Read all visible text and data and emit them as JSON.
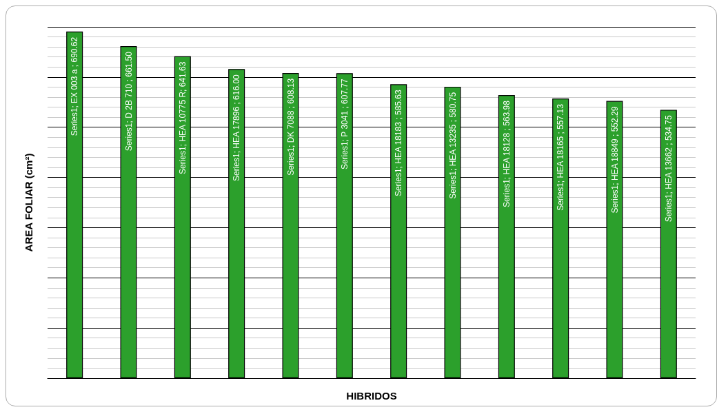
{
  "chart_data": {
    "type": "bar",
    "xlabel": "HIBRIDOS",
    "ylabel": "AREA FOLIAR (cm²)",
    "categories": [
      null,
      null,
      null,
      null,
      null,
      null,
      null,
      null,
      null,
      null,
      null,
      null
    ],
    "series": [
      {
        "color": "#2ca02c",
        "values": [
          690.62,
          661.5,
          641.63,
          616.0,
          608.13,
          607.77,
          585.63,
          580.75,
          563.98,
          557.13,
          552.29,
          534.75
        ],
        "value_labels": [
          "Series1; EX 003 a ; 690.62",
          "Series1; D 2B 710 ; 661.50",
          "Series1; HEA 10775 R; 641.63",
          "Series1; HEA 17896 ; 616.00",
          "Series1; DK 7088 ; 608.13",
          "Series1; P 3041 ; 607.77",
          "Series1; HEA 18183 ; 585.63",
          "Series1; HEA 13235 ; 580.75",
          "Series1; HEA 18128 ; 563.98",
          "Series1; HEA 18165 ; 557.13",
          "Series1; HEA 18849 ; 552.29",
          "Series1; HEA 13662 ; 534.75"
        ]
      }
    ],
    "grid": "y"
  }
}
